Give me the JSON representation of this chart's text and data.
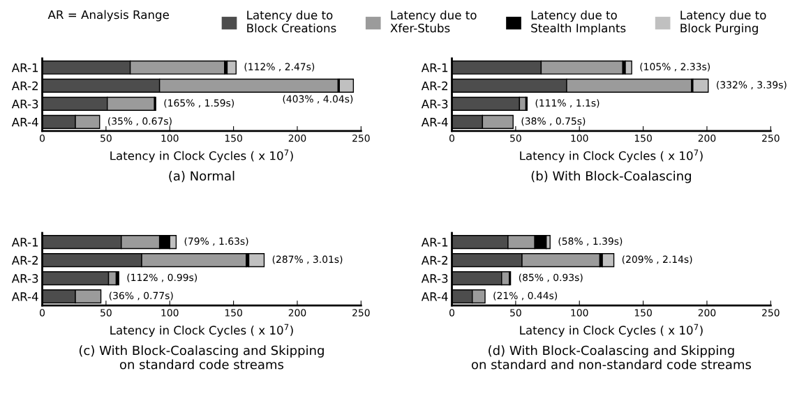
{
  "chart_data": [
    {
      "type": "bar",
      "orientation": "horizontal",
      "stacked": true,
      "title": "(a) Normal",
      "xlabel": "Latency in Clock Cycles ( x 10$^{7}$)",
      "categories": [
        "AR-1",
        "AR-2",
        "AR-3",
        "AR-4"
      ],
      "xlim": [
        0,
        250
      ],
      "xticks": [
        0,
        50,
        100,
        150,
        200,
        250
      ],
      "grid": false,
      "legend": "top",
      "series": [
        {
          "name": "Latency due to\nBlock Creations",
          "color": "#4d4d4d",
          "values": [
            69,
            92,
            51,
            26
          ]
        },
        {
          "name": "Latency due to\nXfer-Stubs",
          "color": "#9b9b9b",
          "values": [
            74,
            140,
            37,
            19
          ]
        },
        {
          "name": "Latency due to\nStealth Implants",
          "color": "#000000",
          "values": [
            2,
            1,
            1,
            0
          ]
        },
        {
          "name": "Latency due to\nBlock Purging",
          "color": "#c0c0c0",
          "values": [
            7,
            11,
            0,
            0
          ]
        }
      ],
      "annotations": [
        "AR = Analysis Range",
        {
          "text": "(112% , 2.47s)",
          "x": 152,
          "y": "AR-1"
        },
        {
          "text": "(403% , 4.04s)",
          "x": 244,
          "y": "AR-2"
        },
        {
          "text": "(165% , 1.59s)",
          "x": 89,
          "y": "AR-3"
        },
        {
          "text": "(35% , 0.67s)",
          "x": 45,
          "y": "AR-4"
        }
      ]
    },
    {
      "type": "bar",
      "orientation": "horizontal",
      "stacked": true,
      "title": "(b) With Block-Coalascing",
      "xlabel": "Latency in Clock Cycles ( x 10$^{7}$)",
      "categories": [
        "AR-1",
        "AR-2",
        "AR-3",
        "AR-4"
      ],
      "xlim": [
        0,
        250
      ],
      "xticks": [
        0,
        50,
        100,
        150,
        200,
        250
      ],
      "grid": false,
      "series": [
        {
          "color": "#4d4d4d",
          "values": [
            70,
            90,
            53,
            24
          ]
        },
        {
          "color": "#9b9b9b",
          "values": [
            64,
            98,
            5,
            24
          ]
        },
        {
          "color": "#000000",
          "values": [
            2,
            1,
            1,
            0
          ]
        },
        {
          "color": "#c0c0c0",
          "values": [
            5,
            12,
            0,
            0
          ]
        }
      ],
      "annotations": [
        {
          "text": "(105% , 2.33s)",
          "x": 141,
          "y": "AR-1"
        },
        {
          "text": "(332% , 3.39s)",
          "x": 201,
          "y": "AR-2"
        },
        {
          "text": "(111% , 1.1s)",
          "x": 59,
          "y": "AR-3"
        },
        {
          "text": "(38% , 0.75s)",
          "x": 48,
          "y": "AR-4"
        }
      ]
    },
    {
      "type": "bar",
      "orientation": "horizontal",
      "stacked": true,
      "title": "(c) With Block-Coalascing and Skipping\non standard code streams",
      "xlabel": "Latency in Clock Cycles ( x 10$^{7}$)",
      "categories": [
        "AR-1",
        "AR-2",
        "AR-3",
        "AR-4"
      ],
      "xlim": [
        0,
        250
      ],
      "xticks": [
        0,
        50,
        100,
        150,
        200,
        250
      ],
      "grid": false,
      "series": [
        {
          "color": "#4d4d4d",
          "values": [
            62,
            78,
            52,
            26
          ]
        },
        {
          "color": "#9b9b9b",
          "values": [
            30,
            82,
            6,
            20
          ]
        },
        {
          "color": "#000000",
          "values": [
            8,
            2,
            2,
            0
          ]
        },
        {
          "color": "#c0c0c0",
          "values": [
            5,
            12,
            0,
            0
          ]
        }
      ],
      "annotations": [
        {
          "text": "(79% , 1.63s)",
          "x": 105,
          "y": "AR-1"
        },
        {
          "text": "(287% , 3.01s)",
          "x": 174,
          "y": "AR-2"
        },
        {
          "text": "(112% , 0.99s)",
          "x": 60,
          "y": "AR-3"
        },
        {
          "text": "(36% , 0.77s)",
          "x": 46,
          "y": "AR-4"
        }
      ]
    },
    {
      "type": "bar",
      "orientation": "horizontal",
      "stacked": true,
      "title": "(d) With Block-Coalascing and Skipping\non standard and non-standard code streams",
      "xlabel": "Latency in Clock Cycles ( x 10$^{7}$)",
      "categories": [
        "AR-1",
        "AR-2",
        "AR-3",
        "AR-4"
      ],
      "xlim": [
        0,
        250
      ],
      "xticks": [
        0,
        50,
        100,
        150,
        200,
        250
      ],
      "grid": false,
      "series": [
        {
          "color": "#4d4d4d",
          "values": [
            44,
            55,
            39,
            16
          ]
        },
        {
          "color": "#9b9b9b",
          "values": [
            21,
            61,
            6,
            10
          ]
        },
        {
          "color": "#000000",
          "values": [
            9,
            2,
            1,
            0
          ]
        },
        {
          "color": "#c0c0c0",
          "values": [
            3,
            9,
            0,
            0
          ]
        }
      ],
      "annotations": [
        {
          "text": "(58% , 1.39s)",
          "x": 77,
          "y": "AR-1"
        },
        {
          "text": "(209% , 2.14s)",
          "x": 127,
          "y": "AR-2"
        },
        {
          "text": "(85% , 0.93s)",
          "x": 46,
          "y": "AR-3"
        },
        {
          "text": "(21% , 0.44s)",
          "x": 26,
          "y": "AR-4"
        }
      ]
    }
  ]
}
